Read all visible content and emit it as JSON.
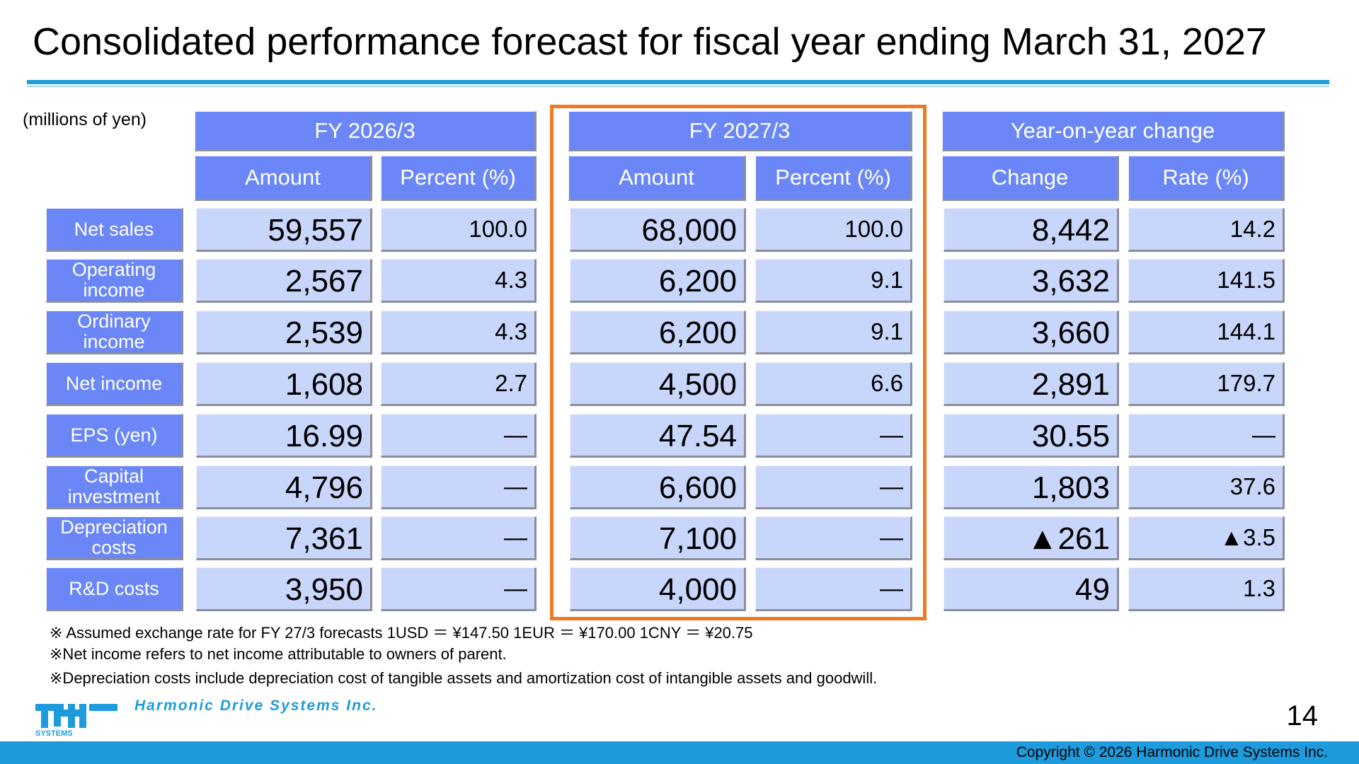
{
  "title": "Consolidated performance forecast for fiscal year ending March 31, 2027",
  "units": "(millions of yen)",
  "groups": {
    "fy2026": "FY 2026/3",
    "fy2027": "FY 2027/3",
    "yoy": "Year-on-year change"
  },
  "subheaders": {
    "fy2026_amount": "Amount",
    "fy2026_percent": "Percent (%)",
    "fy2027_amount": "Amount",
    "fy2027_percent": "Percent (%)",
    "yoy_change": "Change",
    "yoy_rate": "Rate (%)"
  },
  "rows": [
    {
      "label": "Net sales",
      "fy2026_amount": "59,557",
      "fy2026_percent": "100.0",
      "fy2027_amount": "68,000",
      "fy2027_percent": "100.0",
      "change": "8,442",
      "rate": "14.2"
    },
    {
      "label": "Operating income",
      "fy2026_amount": "2,567",
      "fy2026_percent": "4.3",
      "fy2027_amount": "6,200",
      "fy2027_percent": "9.1",
      "change": "3,632",
      "rate": "141.5"
    },
    {
      "label": "Ordinary income",
      "fy2026_amount": "2,539",
      "fy2026_percent": "4.3",
      "fy2027_amount": "6,200",
      "fy2027_percent": "9.1",
      "change": "3,660",
      "rate": "144.1"
    },
    {
      "label": "Net income",
      "fy2026_amount": "1,608",
      "fy2026_percent": "2.7",
      "fy2027_amount": "4,500",
      "fy2027_percent": "6.6",
      "change": "2,891",
      "rate": "179.7"
    },
    {
      "label": "EPS (yen)",
      "fy2026_amount": "16.99",
      "fy2026_percent": "—",
      "fy2027_amount": "47.54",
      "fy2027_percent": "—",
      "change": "30.55",
      "rate": "—"
    },
    {
      "label": "Capital investment",
      "fy2026_amount": "4,796",
      "fy2026_percent": "—",
      "fy2027_amount": "6,600",
      "fy2027_percent": "—",
      "change": "1,803",
      "rate": "37.6"
    },
    {
      "label": "Depreciation costs",
      "fy2026_amount": "7,361",
      "fy2026_percent": "—",
      "fy2027_amount": "7,100",
      "fy2027_percent": "—",
      "change": "▲261",
      "rate": "▲3.5"
    },
    {
      "label": "R&D costs",
      "fy2026_amount": "3,950",
      "fy2026_percent": "—",
      "fy2027_amount": "4,000",
      "fy2027_percent": "—",
      "change": "49",
      "rate": "1.3"
    }
  ],
  "notes": {
    "exchange": "※ Assumed exchange rate for FY 27/3 forecasts 1USD ＝ ¥147.50 1EUR ＝ ¥170.00 1CNY ＝ ¥20.75",
    "net_income": "※Net income refers to net income attributable to owners of parent.",
    "depreciation": "※Depreciation costs include depreciation cost of tangible assets and amortization cost of intangible assets and goodwill."
  },
  "company": "Harmonic Drive Systems Inc.",
  "logo_text": "SYSTEMS",
  "page_number": "14",
  "copyright": "Copyright © 2026 Harmonic Drive Systems Inc.",
  "colors": {
    "header_blue": "#6b86f6",
    "cell_blue": "#c9d6fb",
    "highlight_orange": "#f07a22",
    "brand_blue": "#1e9bdc"
  }
}
